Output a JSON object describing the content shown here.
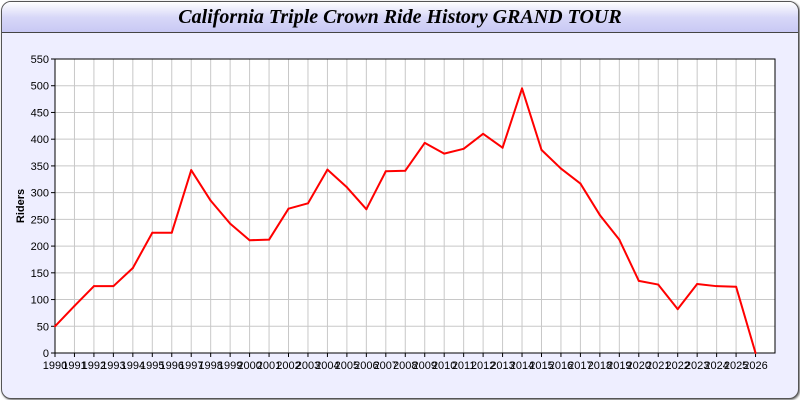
{
  "chart_data": {
    "type": "line",
    "title": "California Triple Crown Ride History GRAND TOUR",
    "xlabel": "",
    "ylabel": "Riders",
    "x": [
      1990,
      1991,
      1992,
      1993,
      1994,
      1995,
      1996,
      1997,
      1998,
      1999,
      2000,
      2001,
      2002,
      2003,
      2004,
      2005,
      2006,
      2007,
      2008,
      2009,
      2010,
      2011,
      2012,
      2013,
      2014,
      2015,
      2016,
      2017,
      2018,
      2019,
      2020,
      2021,
      2022,
      2023,
      2024,
      2025,
      2026
    ],
    "values": [
      50,
      88,
      125,
      125,
      159,
      225,
      225,
      342,
      285,
      242,
      211,
      212,
      270,
      280,
      343,
      310,
      269,
      340,
      341,
      393,
      373,
      382,
      410,
      384,
      495,
      380,
      345,
      317,
      258,
      212,
      135,
      128,
      82,
      129,
      125,
      124,
      0
    ],
    "xlim": [
      1990,
      2027
    ],
    "ylim": [
      0,
      550
    ],
    "yticks": [
      0,
      50,
      100,
      150,
      200,
      250,
      300,
      350,
      400,
      450,
      500,
      550
    ],
    "grid": true,
    "line_color": "#ff0000"
  }
}
